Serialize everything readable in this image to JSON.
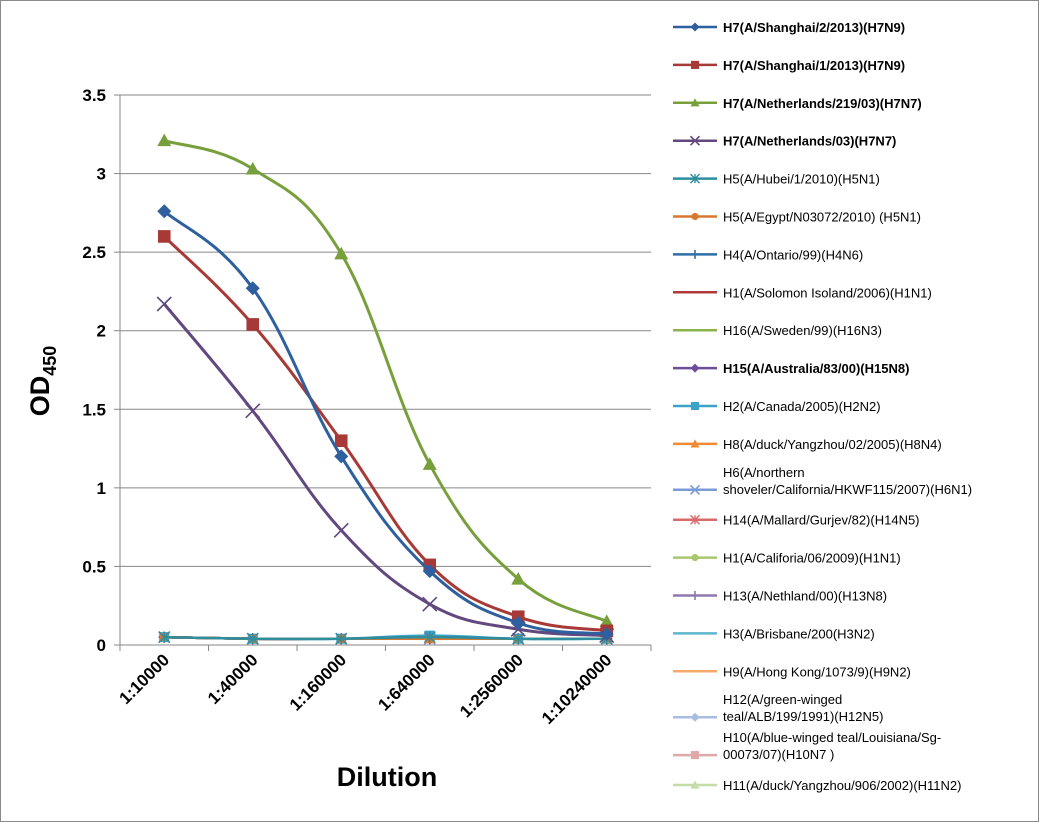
{
  "chart_data": {
    "type": "line",
    "xlabel": "Dilution",
    "ylabel_main": "OD",
    "ylabel_sub": "450",
    "ylim": [
      0,
      3.5
    ],
    "yticks": [
      "0",
      "0.5",
      "1",
      "1.5",
      "2",
      "2.5",
      "3",
      "3.5"
    ],
    "categories": [
      "1:10000",
      "1:40000",
      "1:160000",
      "1:640000",
      "1:2560000",
      "1:10240000"
    ],
    "grid": "horizontal",
    "legend_position": "right",
    "series": [
      {
        "name": "H7(A/Shanghai/2/2013)(H7N9)",
        "bold": true,
        "color": "#2E5F9E",
        "marker": "diamond",
        "values": [
          2.76,
          2.27,
          1.2,
          0.47,
          0.14,
          0.07
        ]
      },
      {
        "name": "H7(A/Shanghai/1/2013)(H7N9)",
        "bold": true,
        "color": "#A73A36",
        "marker": "square",
        "values": [
          2.6,
          2.04,
          1.3,
          0.51,
          0.18,
          0.09
        ]
      },
      {
        "name": "H7(A/Netherlands/219/03)(H7N7)",
        "bold": true,
        "color": "#77A03D",
        "marker": "triangle",
        "values": [
          3.21,
          3.03,
          2.49,
          1.15,
          0.42,
          0.15
        ]
      },
      {
        "name": "H7(A/Netherlands/03)(H7N7)",
        "bold": true,
        "color": "#61487F",
        "marker": "x",
        "values": [
          2.17,
          1.49,
          0.73,
          0.26,
          0.1,
          0.06
        ]
      },
      {
        "name": "H5(A/Hubei/1/2010)(H5N1)",
        "bold": false,
        "color": "#2E8E9E",
        "marker": "star",
        "values": [
          0.05,
          0.04,
          0.04,
          0.05,
          0.04,
          0.04
        ]
      },
      {
        "name": "H5(A/Egypt/N03072/2010) (H5N1)",
        "bold": false,
        "color": "#D9782E",
        "marker": "circle",
        "values": [
          0.05,
          0.04,
          0.04,
          0.04,
          0.04,
          0.04
        ]
      },
      {
        "name": "H4(A/Ontario/99)(H4N6)",
        "bold": false,
        "color": "#2E6FA8",
        "marker": "plus",
        "values": [
          0.05,
          0.04,
          0.04,
          0.05,
          0.04,
          0.04
        ]
      },
      {
        "name": "H1(A/Solomon Isoland/2006)(H1N1)",
        "bold": false,
        "color": "#B03A3A",
        "marker": "none",
        "values": [
          0.05,
          0.04,
          0.04,
          0.04,
          0.04,
          0.04
        ]
      },
      {
        "name": "H16(A/Sweden/99)(H16N3)",
        "bold": false,
        "color": "#8BB34A",
        "marker": "none",
        "values": [
          0.05,
          0.04,
          0.04,
          0.04,
          0.04,
          0.04
        ]
      },
      {
        "name": "H15(A/Australia/83/00)(H15N8)",
        "bold": true,
        "color": "#6E4E9A",
        "marker": "diamond",
        "values": [
          0.05,
          0.04,
          0.04,
          0.04,
          0.04,
          0.04
        ]
      },
      {
        "name": "H2(A/Canada/2005)(H2N2)",
        "bold": false,
        "color": "#3CA3C8",
        "marker": "square",
        "values": [
          0.05,
          0.04,
          0.04,
          0.06,
          0.04,
          0.04
        ]
      },
      {
        "name": "H8(A/duck/Yangzhou/02/2005)(H8N4)",
        "bold": false,
        "color": "#F08A34",
        "marker": "triangle",
        "values": [
          0.05,
          0.04,
          0.04,
          0.04,
          0.04,
          0.04
        ]
      },
      {
        "name": "H6(A/northern shoveler/California/HKWF115/2007)(H6N1)",
        "lines": [
          "H6(A/northern",
          "shoveler/California/HKWF115/2007)(H6N1)"
        ],
        "bold": false,
        "color": "#7B9BD6",
        "marker": "x",
        "values": [
          0.05,
          0.04,
          0.04,
          0.04,
          0.04,
          0.04
        ]
      },
      {
        "name": "H14(A/Mallard/Gurjev/82)(H14N5)",
        "bold": false,
        "color": "#D86A6A",
        "marker": "star",
        "values": [
          0.05,
          0.04,
          0.04,
          0.04,
          0.04,
          0.04
        ]
      },
      {
        "name": "H1(A/Califoria/06/2009)(H1N1)",
        "bold": false,
        "color": "#A8C76E",
        "marker": "circle",
        "values": [
          0.05,
          0.04,
          0.04,
          0.04,
          0.04,
          0.04
        ]
      },
      {
        "name": "H13(A/Nethland/00)(H13N8)",
        "bold": false,
        "color": "#8E78AE",
        "marker": "plus",
        "values": [
          0.05,
          0.04,
          0.04,
          0.04,
          0.04,
          0.04
        ]
      },
      {
        "name": "H3(A/Brisbane/200(H3N2)",
        "bold": false,
        "color": "#5FB6CC",
        "marker": "none",
        "values": [
          0.05,
          0.04,
          0.04,
          0.04,
          0.04,
          0.04
        ]
      },
      {
        "name": "H9(A/Hong Kong/1073/9)(H9N2)",
        "bold": false,
        "color": "#F5A96A",
        "marker": "none",
        "values": [
          0.05,
          0.04,
          0.04,
          0.04,
          0.04,
          0.04
        ]
      },
      {
        "name": "H12(A/green-winged teal/ALB/199/1991)(H12N5)",
        "lines": [
          "H12(A/green-winged",
          "teal/ALB/199/1991)(H12N5)"
        ],
        "bold": false,
        "color": "#A9BDE3",
        "marker": "diamond",
        "values": [
          0.05,
          0.04,
          0.04,
          0.04,
          0.04,
          0.04
        ]
      },
      {
        "name": "H10(A/blue-winged teal/Louisiana/Sg-00073/07)(H10N7 )",
        "lines": [
          "H10(A/blue-winged teal/Louisiana/Sg-",
          "00073/07)(H10N7 )"
        ],
        "bold": false,
        "color": "#E0A9A9",
        "marker": "square",
        "values": [
          0.05,
          0.04,
          0.04,
          0.04,
          0.04,
          0.04
        ]
      },
      {
        "name": "H11(A/duck/Yangzhou/906/2002)(H11N2)",
        "bold": false,
        "color": "#C6DCA8",
        "marker": "triangle",
        "values": [
          0.05,
          0.04,
          0.04,
          0.04,
          0.04,
          0.04
        ]
      }
    ]
  }
}
